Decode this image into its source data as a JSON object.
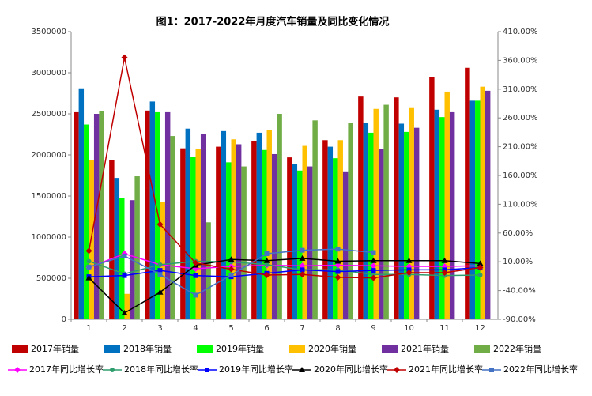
{
  "chart_data": {
    "type": "bar",
    "title": "图1：2017-2022年月度汽车销量及同比变化情况",
    "categories": [
      "1",
      "2",
      "3",
      "4",
      "5",
      "6",
      "7",
      "8",
      "9",
      "10",
      "11",
      "12"
    ],
    "ylim": [
      0,
      3500000
    ],
    "yticks": [
      0,
      500000,
      1000000,
      1500000,
      2000000,
      2500000,
      3000000,
      3500000
    ],
    "y2lim": [
      -90,
      410
    ],
    "y2ticks": [
      {
        "value": -90,
        "label": "-90.00%"
      },
      {
        "value": -40,
        "label": "-40.00%"
      },
      {
        "value": 10,
        "label": "10.00%"
      },
      {
        "value": 60,
        "label": "60.00%"
      },
      {
        "value": 110,
        "label": "110.00%"
      },
      {
        "value": 160,
        "label": "160.00%"
      },
      {
        "value": 210,
        "label": "210.00%"
      },
      {
        "value": 260,
        "label": "260.00%"
      },
      {
        "value": 310,
        "label": "310.00%"
      },
      {
        "value": 360,
        "label": "360.00%"
      },
      {
        "value": 410,
        "label": "410.00%"
      }
    ],
    "series": [
      {
        "name": "2017年销量",
        "type": "bar",
        "color": "#c00000",
        "values": [
          2520000,
          1940000,
          2540000,
          2080000,
          2100000,
          2170000,
          1970000,
          2180000,
          2710000,
          2700000,
          2950000,
          3060000
        ]
      },
      {
        "name": "2018年销量",
        "type": "bar",
        "color": "#0070c0",
        "values": [
          2810000,
          1720000,
          2650000,
          2320000,
          2290000,
          2270000,
          1890000,
          2100000,
          2390000,
          2380000,
          2550000,
          2660000
        ]
      },
      {
        "name": "2019年销量",
        "type": "bar",
        "color": "#00ff00",
        "values": [
          2370000,
          1480000,
          2520000,
          1980000,
          1910000,
          2060000,
          1810000,
          1960000,
          2270000,
          2280000,
          2460000,
          2660000
        ]
      },
      {
        "name": "2020年销量",
        "type": "bar",
        "color": "#ffc000",
        "values": [
          1940000,
          310000,
          1430000,
          2070000,
          2190000,
          2300000,
          2110000,
          2180000,
          2560000,
          2570000,
          2770000,
          2830000
        ]
      },
      {
        "name": "2021年销量",
        "type": "bar",
        "color": "#7030a0",
        "values": [
          2500000,
          1450000,
          2520000,
          2250000,
          2130000,
          2010000,
          1860000,
          1800000,
          2070000,
          2330000,
          2520000,
          2780000
        ]
      },
      {
        "name": "2022年销量",
        "type": "bar",
        "color": "#70ad47",
        "values": [
          2530000,
          1740000,
          2230000,
          1180000,
          1860000,
          2500000,
          2420000,
          2390000,
          2610000,
          null,
          null,
          null
        ]
      },
      {
        "name": "2017年同比增长率",
        "type": "line",
        "axis": "y2",
        "marker": "diamond",
        "color": "#ff00ff",
        "values": [
          0,
          24,
          5,
          -2,
          2,
          4,
          3,
          4,
          3,
          2,
          2,
          3
        ]
      },
      {
        "name": "2018年同比增长率",
        "type": "line",
        "axis": "y2",
        "marker": "circle",
        "color": "#2e9e6e",
        "values": [
          11,
          -11,
          5,
          11,
          10,
          5,
          -4,
          -4,
          -12,
          -12,
          -14,
          -13
        ]
      },
      {
        "name": "2019年同比增长率",
        "type": "line",
        "axis": "y2",
        "marker": "square",
        "color": "#0000ff",
        "values": [
          -16,
          -14,
          -5,
          -14,
          -16,
          -10,
          -4,
          -7,
          -5,
          -4,
          -4,
          0
        ]
      },
      {
        "name": "2020年同比增长率",
        "type": "line",
        "axis": "y2",
        "marker": "triangle",
        "color": "#000000",
        "values": [
          -18,
          -79,
          -43,
          4,
          14,
          12,
          16,
          11,
          12,
          12,
          12,
          7
        ]
      },
      {
        "name": "2021年同比增长率",
        "type": "line",
        "axis": "y2",
        "marker": "diamond",
        "color": "#c00000",
        "values": [
          29,
          365,
          75,
          8,
          -3,
          -13,
          -12,
          -17,
          -18,
          -9,
          -9,
          0
        ]
      },
      {
        "name": "2022年同比增长率",
        "type": "line",
        "axis": "y2",
        "marker": "square",
        "color": "#4472c4",
        "values": [
          1,
          20,
          -12,
          -48,
          -13,
          24,
          30,
          32,
          26,
          null,
          null,
          null
        ]
      }
    ]
  }
}
